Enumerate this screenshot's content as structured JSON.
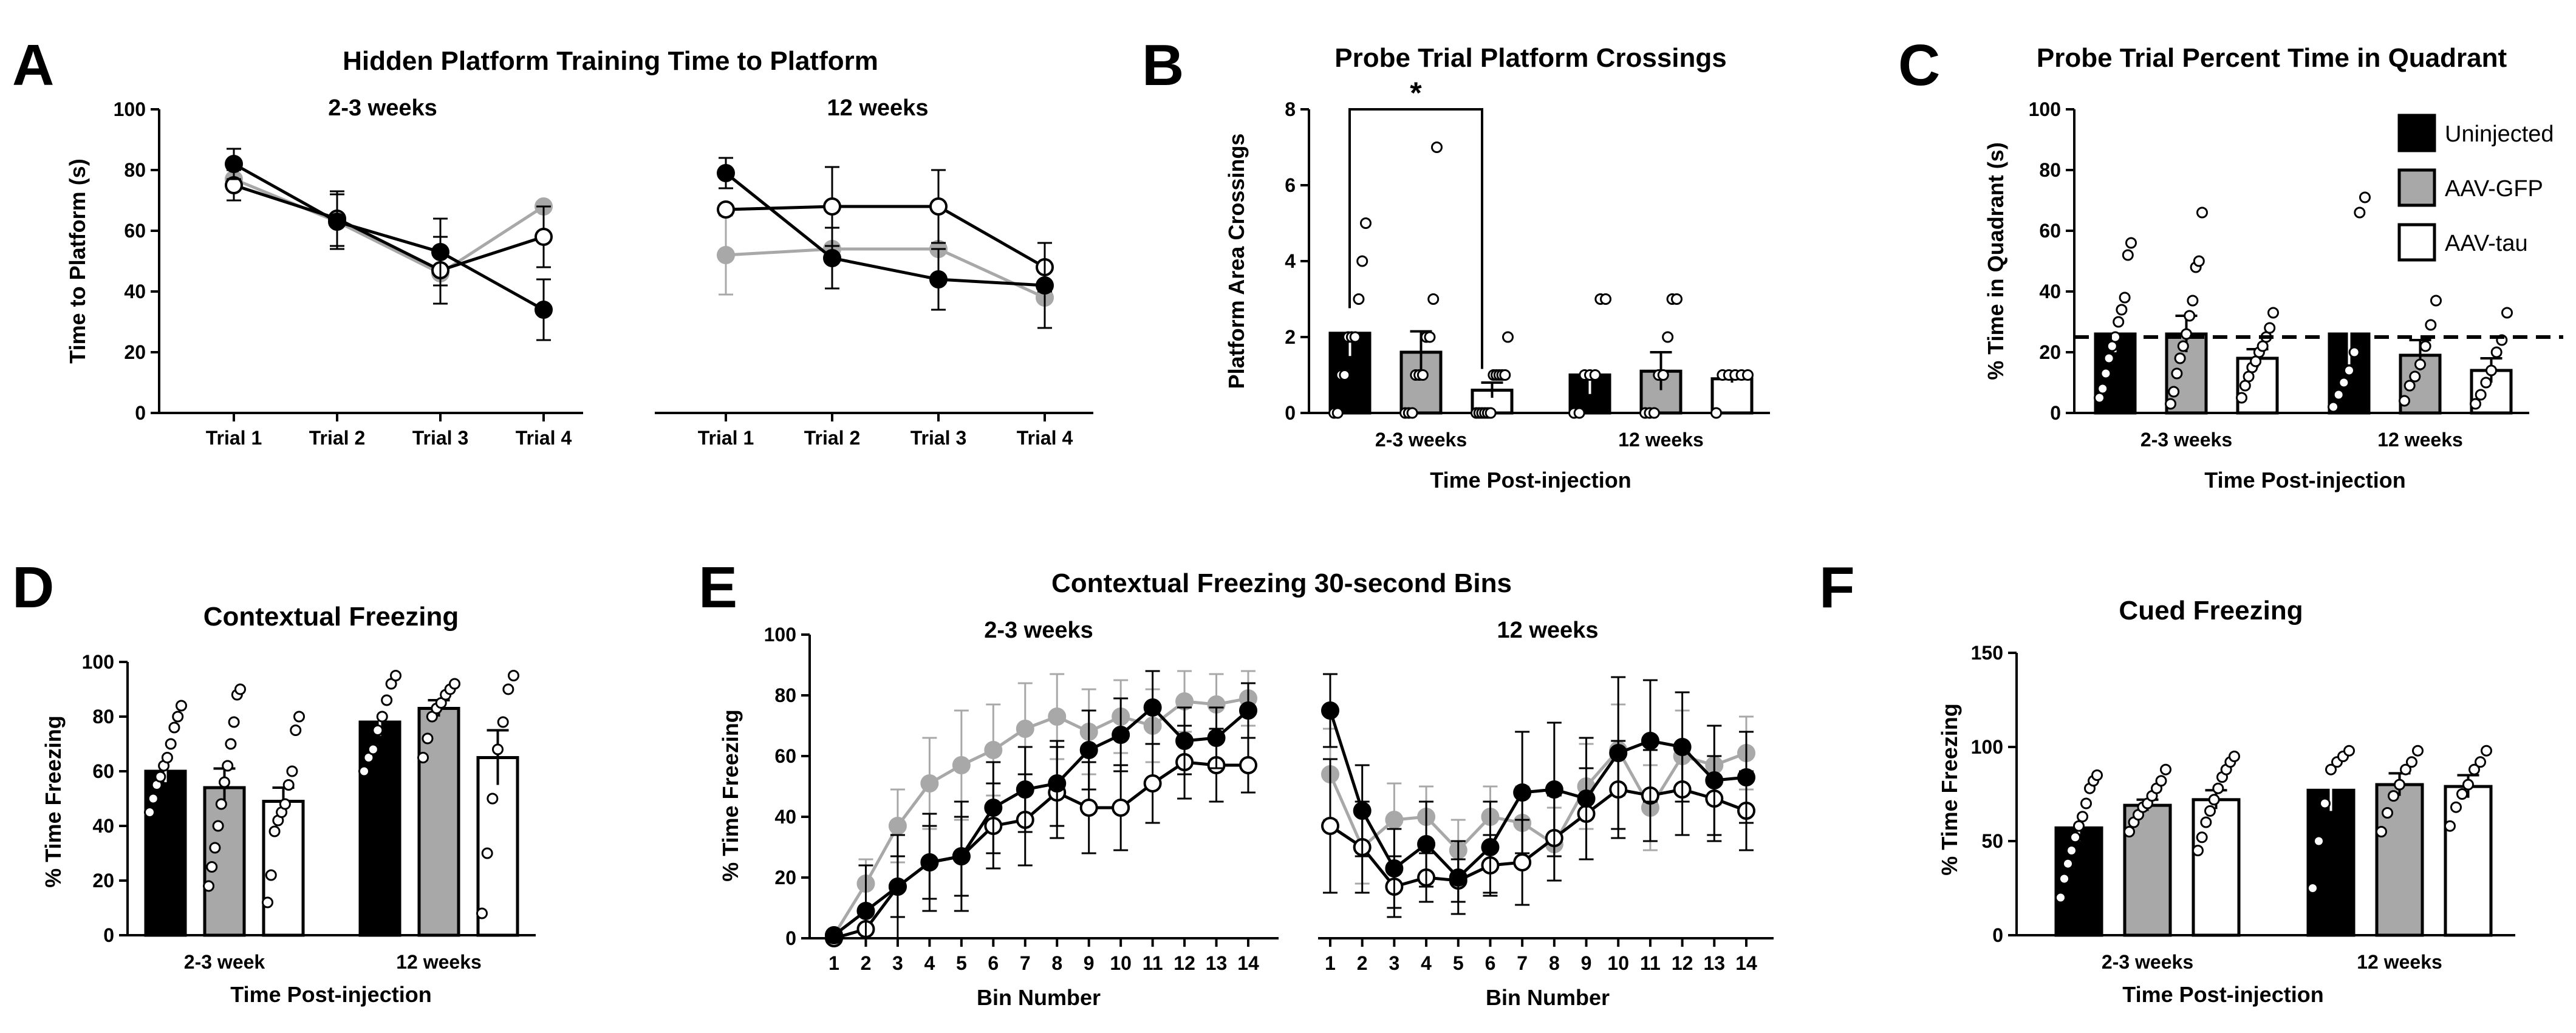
{
  "colors": {
    "uninjected": "#000000",
    "gfp": "#a8a8a8",
    "tau": "#ffffff",
    "stroke": "#000000"
  },
  "chart_data": [
    {
      "id": "A",
      "type": "line",
      "panel_letter": "A",
      "title": "Hidden Platform Training Time to Platform",
      "ylabel": "Time to Platform (s)",
      "ylim": [
        0,
        100
      ],
      "yticks": [
        0,
        20,
        40,
        60,
        80,
        100
      ],
      "subpanels": [
        {
          "label": "2-3 weeks",
          "categories": [
            "Trial 1",
            "Trial 2",
            "Trial 3",
            "Trial 4"
          ],
          "series": [
            {
              "name": "AAV-GFP",
              "values": [
                77,
                63,
                46,
                68
              ],
              "errors": [
                0,
                0,
                0,
                0
              ]
            },
            {
              "name": "AAV-tau",
              "values": [
                75,
                64,
                47,
                58
              ],
              "errors": [
                5,
                9,
                11,
                10
              ]
            },
            {
              "name": "Uninjected",
              "values": [
                82,
                63,
                53,
                34
              ],
              "errors": [
                5,
                9,
                11,
                10
              ]
            }
          ]
        },
        {
          "label": "12 weeks",
          "categories": [
            "Trial 1",
            "Trial 2",
            "Trial 3",
            "Trial 4"
          ],
          "series": [
            {
              "name": "AAV-GFP",
              "values": [
                52,
                54,
                54,
                38
              ],
              "errors": [
                13,
                0,
                0,
                0
              ]
            },
            {
              "name": "AAV-tau",
              "values": [
                67,
                68,
                68,
                48
              ],
              "errors": [
                0,
                13,
                12,
                8
              ]
            },
            {
              "name": "Uninjected",
              "values": [
                79,
                51,
                44,
                42
              ],
              "errors": [
                5,
                10,
                10,
                14
              ]
            }
          ]
        }
      ]
    },
    {
      "id": "B",
      "type": "bar",
      "panel_letter": "B",
      "title": "Probe Trial Platform Crossings",
      "xlabel": "Time Post-injection",
      "ylabel": "Platform Area Crossings",
      "ylim": [
        0,
        8
      ],
      "yticks": [
        0,
        2,
        4,
        6,
        8
      ],
      "significance": "*",
      "groups": [
        {
          "label": "2-3 weeks",
          "series": [
            {
              "name": "Uninjected",
              "value": 2.1,
              "error": 0.6,
              "points": [
                0,
                0,
                1,
                1,
                2,
                2,
                2,
                3,
                4,
                5
              ]
            },
            {
              "name": "AAV-GFP",
              "value": 1.6,
              "error": 0.55,
              "points": [
                0,
                0,
                0,
                1,
                1,
                1,
                2,
                2,
                3,
                7
              ]
            },
            {
              "name": "AAV-tau",
              "value": 0.6,
              "error": 0.2,
              "points": [
                0,
                0,
                0,
                0,
                0,
                0,
                1,
                1,
                1,
                1,
                1,
                2
              ]
            }
          ]
        },
        {
          "label": "12 weeks",
          "series": [
            {
              "name": "Uninjected",
              "value": 1.0,
              "error": 0.5,
              "points": [
                0,
                0,
                1,
                1,
                1,
                3,
                3
              ]
            },
            {
              "name": "AAV-GFP",
              "value": 1.1,
              "error": 0.5,
              "points": [
                0,
                0,
                0,
                1,
                1,
                2,
                3,
                3
              ]
            },
            {
              "name": "AAV-tau",
              "value": 0.9,
              "error": 0.1,
              "points": [
                0,
                1,
                1,
                1,
                1,
                1
              ]
            }
          ]
        }
      ]
    },
    {
      "id": "C",
      "type": "bar",
      "panel_letter": "C",
      "title": "Probe Trial Percent Time in Quadrant",
      "xlabel": "Time Post-injection",
      "ylabel": "% Time in Quadrant (s)",
      "ylim": [
        0,
        100
      ],
      "yticks": [
        0,
        20,
        40,
        60,
        80,
        100
      ],
      "reference_line": 25,
      "legend": [
        "Uninjected",
        "AAV-GFP",
        "AAV-tau"
      ],
      "groups": [
        {
          "label": "2-3 weeks",
          "series": [
            {
              "name": "Uninjected",
              "value": 26,
              "error": 6,
              "points": [
                5,
                8,
                13,
                18,
                22,
                25,
                30,
                34,
                38,
                52,
                56
              ]
            },
            {
              "name": "AAV-GFP",
              "value": 26,
              "error": 6,
              "points": [
                3,
                7,
                13,
                18,
                22,
                26,
                32,
                37,
                48,
                50,
                66
              ]
            },
            {
              "name": "AAV-tau",
              "value": 18,
              "error": 3,
              "points": [
                5,
                9,
                12,
                15,
                17,
                20,
                22,
                25,
                28,
                33
              ]
            }
          ]
        },
        {
          "label": "12 weeks",
          "series": [
            {
              "name": "Uninjected",
              "value": 26,
              "error": 10,
              "points": [
                2,
                6,
                10,
                14,
                20,
                66,
                71
              ]
            },
            {
              "name": "AAV-GFP",
              "value": 19,
              "error": 5,
              "points": [
                4,
                9,
                12,
                16,
                22,
                29,
                37
              ]
            },
            {
              "name": "AAV-tau",
              "value": 14,
              "error": 4,
              "points": [
                3,
                6,
                10,
                14,
                20,
                24,
                33
              ]
            }
          ]
        }
      ]
    },
    {
      "id": "D",
      "type": "bar",
      "panel_letter": "D",
      "title": "Contextual Freezing",
      "xlabel": "Time Post-injection",
      "ylabel": "% Time Freezing",
      "ylim": [
        0,
        100
      ],
      "yticks": [
        0,
        20,
        40,
        60,
        80,
        100
      ],
      "groups": [
        {
          "label": "2-3 week",
          "series": [
            {
              "name": "Uninjected",
              "value": 60,
              "error": 4,
              "points": [
                45,
                50,
                55,
                58,
                62,
                65,
                70,
                76,
                80,
                84
              ]
            },
            {
              "name": "AAV-GFP",
              "value": 54,
              "error": 7,
              "points": [
                18,
                25,
                32,
                40,
                48,
                56,
                62,
                70,
                78,
                88,
                90
              ]
            },
            {
              "name": "AAV-tau",
              "value": 49,
              "error": 5,
              "points": [
                12,
                22,
                38,
                42,
                45,
                48,
                55,
                60,
                75,
                80
              ]
            }
          ]
        },
        {
          "label": "12 weeks",
          "series": [
            {
              "name": "Uninjected",
              "value": 78,
              "error": 5,
              "points": [
                60,
                65,
                68,
                75,
                80,
                86,
                92,
                95
              ]
            },
            {
              "name": "AAV-GFP",
              "value": 83,
              "error": 3,
              "points": [
                65,
                72,
                80,
                83,
                85,
                88,
                90,
                92
              ]
            },
            {
              "name": "AAV-tau",
              "value": 65,
              "error": 10,
              "points": [
                8,
                30,
                50,
                68,
                78,
                90,
                95
              ]
            }
          ]
        }
      ]
    },
    {
      "id": "E",
      "type": "line",
      "panel_letter": "E",
      "title": "Contextual Freezing 30-second Bins",
      "xlabel": "Bin Number",
      "ylabel": "% Time Freezing",
      "ylim": [
        0,
        100
      ],
      "yticks": [
        0,
        20,
        40,
        60,
        80,
        100
      ],
      "subpanels": [
        {
          "label": "2-3 weeks",
          "x": [
            1,
            2,
            3,
            4,
            5,
            6,
            7,
            8,
            9,
            10,
            11,
            12,
            13,
            14
          ],
          "series": [
            {
              "name": "AAV-GFP",
              "values": [
                1,
                18,
                37,
                51,
                57,
                62,
                69,
                73,
                68,
                73,
                70,
                78,
                77,
                79
              ],
              "errors": [
                0,
                8,
                12,
                15,
                18,
                15,
                15,
                14,
                14,
                12,
                12,
                10,
                10,
                9
              ]
            },
            {
              "name": "AAV-tau",
              "values": [
                0,
                3,
                17,
                25,
                27,
                37,
                39,
                48,
                43,
                43,
                51,
                58,
                57,
                57
              ],
              "errors": [
                0,
                5,
                10,
                12,
                13,
                14,
                15,
                15,
                15,
                14,
                13,
                12,
                12,
                9
              ]
            },
            {
              "name": "Uninjected",
              "values": [
                1,
                9,
                17,
                25,
                27,
                43,
                49,
                51,
                62,
                67,
                76,
                65,
                66,
                75
              ],
              "errors": [
                0,
                15,
                17,
                16,
                18,
                15,
                14,
                14,
                13,
                12,
                12,
                11,
                10,
                9
              ]
            }
          ]
        },
        {
          "label": "12 weeks",
          "x": [
            1,
            2,
            3,
            4,
            5,
            6,
            7,
            8,
            9,
            10,
            11,
            12,
            13,
            14
          ],
          "series": [
            {
              "name": "AAV-GFP",
              "values": [
                54,
                30,
                39,
                40,
                29,
                40,
                38,
                31,
                50,
                62,
                43,
                60,
                57,
                61
              ],
              "errors": [
                15,
                12,
                12,
                10,
                10,
                10,
                12,
                12,
                14,
                15,
                14,
                15,
                13,
                12
              ]
            },
            {
              "name": "AAV-tau",
              "values": [
                37,
                30,
                17,
                20,
                19,
                24,
                25,
                33,
                41,
                49,
                47,
                49,
                46,
                42
              ],
              "errors": [
                22,
                15,
                10,
                8,
                7,
                10,
                14,
                14,
                15,
                16,
                15,
                15,
                14,
                13
              ]
            },
            {
              "name": "Uninjected",
              "values": [
                75,
                42,
                23,
                31,
                20,
                30,
                48,
                49,
                46,
                61,
                65,
                63,
                52,
                53
              ],
              "errors": [
                12,
                15,
                13,
                14,
                12,
                15,
                20,
                22,
                20,
                25,
                20,
                18,
                18,
                15
              ]
            }
          ]
        }
      ]
    },
    {
      "id": "F",
      "type": "bar",
      "panel_letter": "F",
      "title": "Cued Freezing",
      "xlabel": "Time Post-injection",
      "ylabel": "% Time Freezing",
      "ylim": [
        0,
        150
      ],
      "yticks": [
        0,
        50,
        100,
        150
      ],
      "groups": [
        {
          "label": "2-3 weeks",
          "series": [
            {
              "name": "Uninjected",
              "value": 57,
              "error": 7,
              "points": [
                20,
                30,
                38,
                45,
                52,
                58,
                63,
                70,
                78,
                82,
                85
              ]
            },
            {
              "name": "AAV-GFP",
              "value": 69,
              "error": 3,
              "points": [
                55,
                60,
                64,
                68,
                70,
                74,
                78,
                82,
                88
              ]
            },
            {
              "name": "AAV-tau",
              "value": 72,
              "error": 5,
              "points": [
                45,
                52,
                60,
                66,
                72,
                78,
                84,
                88,
                92,
                95
              ]
            }
          ]
        },
        {
          "label": "12 weeks",
          "series": [
            {
              "name": "Uninjected",
              "value": 77,
              "error": 11,
              "points": [
                25,
                50,
                70,
                88,
                92,
                95,
                98
              ]
            },
            {
              "name": "AAV-GFP",
              "value": 80,
              "error": 6,
              "points": [
                55,
                65,
                74,
                80,
                88,
                92,
                98
              ]
            },
            {
              "name": "AAV-tau",
              "value": 79,
              "error": 6,
              "points": [
                58,
                68,
                75,
                80,
                88,
                92,
                98
              ]
            }
          ]
        }
      ]
    }
  ]
}
